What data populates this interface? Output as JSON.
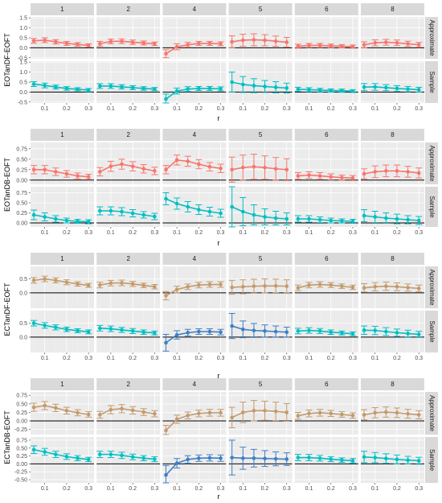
{
  "chart_data": [
    {
      "type": "line",
      "ylabel": "EOTanDF-EOFT",
      "xlabel": "r",
      "panels": [
        "1",
        "2",
        "4",
        "5",
        "6",
        "8"
      ],
      "rows": [
        "Approximate",
        "Sample"
      ],
      "x": [
        0.05,
        0.1,
        0.15,
        0.2,
        0.25,
        0.3
      ],
      "x_ticks": [
        "0.1",
        "0.2",
        "0.3"
      ],
      "y_ticks": [
        "-0.5",
        "0.0",
        "0.5",
        "1.0",
        "1.5"
      ],
      "ylim": [
        -0.55,
        1.55
      ],
      "colors": {
        "Approximate": "#f8766d",
        "Sample": "#00bfc4"
      },
      "series": {
        "Approximate": {
          "1": {
            "y": [
              0.35,
              0.38,
              0.3,
              0.22,
              0.17,
              0.12
            ],
            "err": [
              0.12,
              0.12,
              0.11,
              0.1,
              0.09,
              0.08
            ]
          },
          "2": {
            "y": [
              0.2,
              0.32,
              0.33,
              0.28,
              0.24,
              0.2
            ],
            "err": [
              0.12,
              0.12,
              0.12,
              0.11,
              0.1,
              0.09
            ]
          },
          "4": {
            "y": [
              -0.3,
              0.05,
              0.15,
              0.22,
              0.22,
              0.2
            ],
            "err": [
              0.2,
              0.15,
              0.12,
              0.1,
              0.1,
              0.1
            ]
          },
          "5": {
            "y": [
              0.3,
              0.38,
              0.4,
              0.38,
              0.33,
              0.28
            ],
            "err": [
              0.3,
              0.3,
              0.3,
              0.28,
              0.26,
              0.24
            ]
          },
          "6": {
            "y": [
              0.08,
              0.12,
              0.12,
              0.1,
              0.08,
              0.06
            ],
            "err": [
              0.1,
              0.1,
              0.1,
              0.09,
              0.08,
              0.08
            ]
          },
          "8": {
            "y": [
              0.15,
              0.25,
              0.28,
              0.25,
              0.2,
              0.15
            ],
            "err": [
              0.15,
              0.15,
              0.15,
              0.14,
              0.13,
              0.12
            ]
          }
        },
        "Sample": {
          "1": {
            "y": [
              0.4,
              0.33,
              0.25,
              0.18,
              0.14,
              0.1
            ],
            "err": [
              0.12,
              0.12,
              0.1,
              0.09,
              0.08,
              0.08
            ]
          },
          "2": {
            "y": [
              0.3,
              0.3,
              0.26,
              0.22,
              0.18,
              0.15
            ],
            "err": [
              0.12,
              0.12,
              0.11,
              0.1,
              0.09,
              0.08
            ]
          },
          "4": {
            "y": [
              -0.35,
              0.05,
              0.15,
              0.18,
              0.18,
              0.16
            ],
            "err": [
              0.25,
              0.15,
              0.12,
              0.1,
              0.1,
              0.1
            ]
          },
          "5": {
            "y": [
              0.5,
              0.38,
              0.32,
              0.28,
              0.24,
              0.2
            ],
            "err": [
              0.5,
              0.4,
              0.35,
              0.3,
              0.28,
              0.25
            ]
          },
          "6": {
            "y": [
              0.14,
              0.12,
              0.1,
              0.08,
              0.07,
              0.05
            ],
            "err": [
              0.1,
              0.1,
              0.09,
              0.08,
              0.08,
              0.07
            ]
          },
          "8": {
            "y": [
              0.25,
              0.26,
              0.22,
              0.18,
              0.15,
              0.12
            ],
            "err": [
              0.18,
              0.17,
              0.15,
              0.14,
              0.13,
              0.12
            ]
          }
        }
      }
    },
    {
      "type": "line",
      "ylabel": "EOTanDB-EOFT",
      "xlabel": "r",
      "panels": [
        "1",
        "2",
        "4",
        "5",
        "6",
        "8"
      ],
      "rows": [
        "Approximate",
        "Sample"
      ],
      "x": [
        0.05,
        0.1,
        0.15,
        0.2,
        0.25,
        0.3
      ],
      "x_ticks": [
        "0.1",
        "0.2",
        "0.3"
      ],
      "y_ticks": [
        "0.00",
        "0.25",
        "0.50",
        "0.75"
      ],
      "ylim": [
        -0.1,
        0.9
      ],
      "colors": {
        "Approximate": "#f8766d",
        "Sample": "#00bfc4"
      },
      "series": {
        "Approximate": {
          "1": {
            "y": [
              0.25,
              0.25,
              0.2,
              0.15,
              0.1,
              0.08
            ],
            "err": [
              0.1,
              0.1,
              0.09,
              0.08,
              0.07,
              0.06
            ]
          },
          "2": {
            "y": [
              0.2,
              0.33,
              0.38,
              0.33,
              0.27,
              0.22
            ],
            "err": [
              0.1,
              0.12,
              0.12,
              0.11,
              0.1,
              0.09
            ]
          },
          "4": {
            "y": [
              0.25,
              0.48,
              0.45,
              0.38,
              0.32,
              0.28
            ],
            "err": [
              0.1,
              0.12,
              0.12,
              0.11,
              0.1,
              0.1
            ]
          },
          "5": {
            "y": [
              0.25,
              0.3,
              0.32,
              0.3,
              0.27,
              0.25
            ],
            "err": [
              0.3,
              0.3,
              0.3,
              0.28,
              0.27,
              0.26
            ]
          },
          "6": {
            "y": [
              0.1,
              0.12,
              0.1,
              0.08,
              0.06,
              0.05
            ],
            "err": [
              0.08,
              0.08,
              0.08,
              0.07,
              0.06,
              0.06
            ]
          },
          "8": {
            "y": [
              0.15,
              0.2,
              0.22,
              0.22,
              0.2,
              0.17
            ],
            "err": [
              0.12,
              0.14,
              0.14,
              0.14,
              0.13,
              0.12
            ]
          }
        },
        "Sample": {
          "1": {
            "y": [
              0.2,
              0.15,
              0.1,
              0.06,
              0.04,
              0.03
            ],
            "err": [
              0.12,
              0.1,
              0.08,
              0.06,
              0.05,
              0.05
            ]
          },
          "2": {
            "y": [
              0.3,
              0.3,
              0.28,
              0.24,
              0.2,
              0.16
            ],
            "err": [
              0.1,
              0.1,
              0.1,
              0.09,
              0.08,
              0.08
            ]
          },
          "4": {
            "y": [
              0.6,
              0.48,
              0.4,
              0.33,
              0.28,
              0.24
            ],
            "err": [
              0.15,
              0.14,
              0.13,
              0.12,
              0.11,
              0.1
            ]
          },
          "5": {
            "y": [
              0.4,
              0.28,
              0.2,
              0.15,
              0.12,
              0.1
            ],
            "err": [
              0.5,
              0.35,
              0.25,
              0.2,
              0.17,
              0.15
            ]
          },
          "6": {
            "y": [
              0.1,
              0.1,
              0.08,
              0.06,
              0.05,
              0.04
            ],
            "err": [
              0.08,
              0.08,
              0.07,
              0.06,
              0.05,
              0.05
            ]
          },
          "8": {
            "y": [
              0.18,
              0.15,
              0.12,
              0.1,
              0.08,
              0.06
            ],
            "err": [
              0.15,
              0.14,
              0.13,
              0.12,
              0.1,
              0.1
            ]
          }
        }
      }
    },
    {
      "type": "line",
      "ylabel": "ECTanDF-EOFT",
      "xlabel": "r",
      "panels": [
        "1",
        "2",
        "4",
        "5",
        "6",
        "8"
      ],
      "rows": [
        "Approximate",
        "Sample"
      ],
      "x": [
        0.05,
        0.1,
        0.15,
        0.2,
        0.25,
        0.3
      ],
      "x_ticks": [
        "0.1",
        "0.2",
        "0.3"
      ],
      "y_ticks": [
        "0.0",
        "0.5"
      ],
      "ylim": [
        -0.55,
        0.95
      ],
      "colors": {
        "Approximate": "#c49a6c",
        "Sample": "#00bfc4",
        "Sample_alt": "#3f7fc4"
      },
      "series": {
        "Approximate": {
          "1": {
            "y": [
              0.45,
              0.5,
              0.45,
              0.38,
              0.32,
              0.27
            ],
            "err": [
              0.1,
              0.1,
              0.09,
              0.09,
              0.08,
              0.07
            ]
          },
          "2": {
            "y": [
              0.28,
              0.35,
              0.36,
              0.32,
              0.27,
              0.22
            ],
            "err": [
              0.1,
              0.1,
              0.1,
              0.09,
              0.08,
              0.08
            ]
          },
          "4": {
            "y": [
              -0.1,
              0.12,
              0.22,
              0.28,
              0.3,
              0.3
            ],
            "err": [
              0.15,
              0.12,
              0.1,
              0.1,
              0.1,
              0.1
            ]
          },
          "5": {
            "y": [
              0.2,
              0.22,
              0.24,
              0.25,
              0.25,
              0.24
            ],
            "err": [
              0.25,
              0.25,
              0.25,
              0.25,
              0.24,
              0.23
            ]
          },
          "6": {
            "y": [
              0.18,
              0.28,
              0.3,
              0.28,
              0.24,
              0.2
            ],
            "err": [
              0.1,
              0.1,
              0.1,
              0.09,
              0.08,
              0.08
            ]
          },
          "8": {
            "y": [
              0.18,
              0.22,
              0.24,
              0.22,
              0.19,
              0.16
            ],
            "err": [
              0.15,
              0.15,
              0.15,
              0.14,
              0.13,
              0.12
            ]
          }
        },
        "Sample": {
          "1": {
            "y": [
              0.5,
              0.42,
              0.35,
              0.28,
              0.23,
              0.19
            ],
            "err": [
              0.1,
              0.1,
              0.09,
              0.08,
              0.07,
              0.07
            ]
          },
          "2": {
            "y": [
              0.32,
              0.3,
              0.26,
              0.22,
              0.18,
              0.15
            ],
            "err": [
              0.1,
              0.1,
              0.09,
              0.09,
              0.08,
              0.07
            ]
          },
          "4": {
            "y": [
              -0.2,
              0.08,
              0.16,
              0.2,
              0.2,
              0.18
            ],
            "err": [
              0.3,
              0.15,
              0.12,
              0.1,
              0.1,
              0.1
            ]
          },
          "5": {
            "y": [
              0.4,
              0.28,
              0.24,
              0.22,
              0.2,
              0.18
            ],
            "err": [
              0.45,
              0.3,
              0.25,
              0.22,
              0.2,
              0.18
            ]
          },
          "6": {
            "y": [
              0.22,
              0.24,
              0.22,
              0.18,
              0.15,
              0.12
            ],
            "err": [
              0.1,
              0.1,
              0.09,
              0.08,
              0.07,
              0.07
            ]
          },
          "8": {
            "y": [
              0.25,
              0.24,
              0.2,
              0.16,
              0.13,
              0.1
            ],
            "err": [
              0.15,
              0.15,
              0.14,
              0.13,
              0.12,
              0.11
            ]
          }
        }
      }
    },
    {
      "type": "line",
      "ylabel": "ECTanDB-EOFT",
      "xlabel": "r",
      "panels": [
        "1",
        "2",
        "4",
        "5",
        "6",
        "8"
      ],
      "rows": [
        "Approximate",
        "Sample"
      ],
      "x": [
        0.05,
        0.1,
        0.15,
        0.2,
        0.25,
        0.3
      ],
      "x_ticks": [
        "0.1",
        "0.2",
        "0.3"
      ],
      "y_ticks_top": [
        "-0.25",
        "0.00",
        "0.25",
        "0.50",
        "0.75"
      ],
      "y_ticks_bottom": [
        "-0.50",
        "-0.25",
        "0.00",
        "0.25",
        "0.50",
        "0.75"
      ],
      "ylim_top": [
        -0.4,
        0.85
      ],
      "ylim_bottom": [
        -0.6,
        0.85
      ],
      "colors": {
        "Approximate": "#c49a6c",
        "Sample": "#00bfc4",
        "Sample_alt": "#3f7fc4"
      },
      "series": {
        "Approximate": {
          "1": {
            "y": [
              0.4,
              0.45,
              0.38,
              0.3,
              0.24,
              0.19
            ],
            "err": [
              0.12,
              0.12,
              0.11,
              0.1,
              0.09,
              0.08
            ]
          },
          "2": {
            "y": [
              0.18,
              0.33,
              0.36,
              0.31,
              0.26,
              0.21
            ],
            "err": [
              0.1,
              0.12,
              0.12,
              0.11,
              0.1,
              0.09
            ]
          },
          "4": {
            "y": [
              -0.28,
              0.05,
              0.16,
              0.22,
              0.24,
              0.24
            ],
            "err": [
              0.15,
              0.12,
              0.1,
              0.1,
              0.1,
              0.1
            ]
          },
          "5": {
            "y": [
              0.1,
              0.25,
              0.3,
              0.3,
              0.28,
              0.25
            ],
            "err": [
              0.3,
              0.3,
              0.3,
              0.28,
              0.27,
              0.26
            ]
          },
          "6": {
            "y": [
              0.15,
              0.22,
              0.24,
              0.22,
              0.19,
              0.16
            ],
            "err": [
              0.1,
              0.1,
              0.1,
              0.09,
              0.08,
              0.08
            ]
          },
          "8": {
            "y": [
              0.18,
              0.24,
              0.26,
              0.24,
              0.21,
              0.18
            ],
            "err": [
              0.15,
              0.15,
              0.15,
              0.14,
              0.13,
              0.12
            ]
          }
        },
        "Sample": {
          "1": {
            "y": [
              0.45,
              0.38,
              0.3,
              0.23,
              0.18,
              0.14
            ],
            "err": [
              0.12,
              0.11,
              0.1,
              0.09,
              0.08,
              0.07
            ]
          },
          "2": {
            "y": [
              0.3,
              0.3,
              0.27,
              0.22,
              0.18,
              0.15
            ],
            "err": [
              0.1,
              0.1,
              0.1,
              0.09,
              0.08,
              0.08
            ]
          },
          "4": {
            "y": [
              -0.35,
              0.02,
              0.14,
              0.18,
              0.19,
              0.18
            ],
            "err": [
              0.3,
              0.15,
              0.12,
              0.1,
              0.1,
              0.1
            ]
          },
          "5": {
            "y": [
              0.2,
              0.18,
              0.18,
              0.17,
              0.16,
              0.15
            ],
            "err": [
              0.55,
              0.35,
              0.28,
              0.25,
              0.22,
              0.2
            ]
          },
          "6": {
            "y": [
              0.2,
              0.2,
              0.18,
              0.15,
              0.12,
              0.1
            ],
            "err": [
              0.1,
              0.1,
              0.09,
              0.08,
              0.07,
              0.07
            ]
          },
          "8": {
            "y": [
              0.22,
              0.2,
              0.17,
              0.14,
              0.12,
              0.1
            ],
            "err": [
              0.18,
              0.16,
              0.15,
              0.14,
              0.12,
              0.11
            ]
          }
        }
      }
    }
  ]
}
